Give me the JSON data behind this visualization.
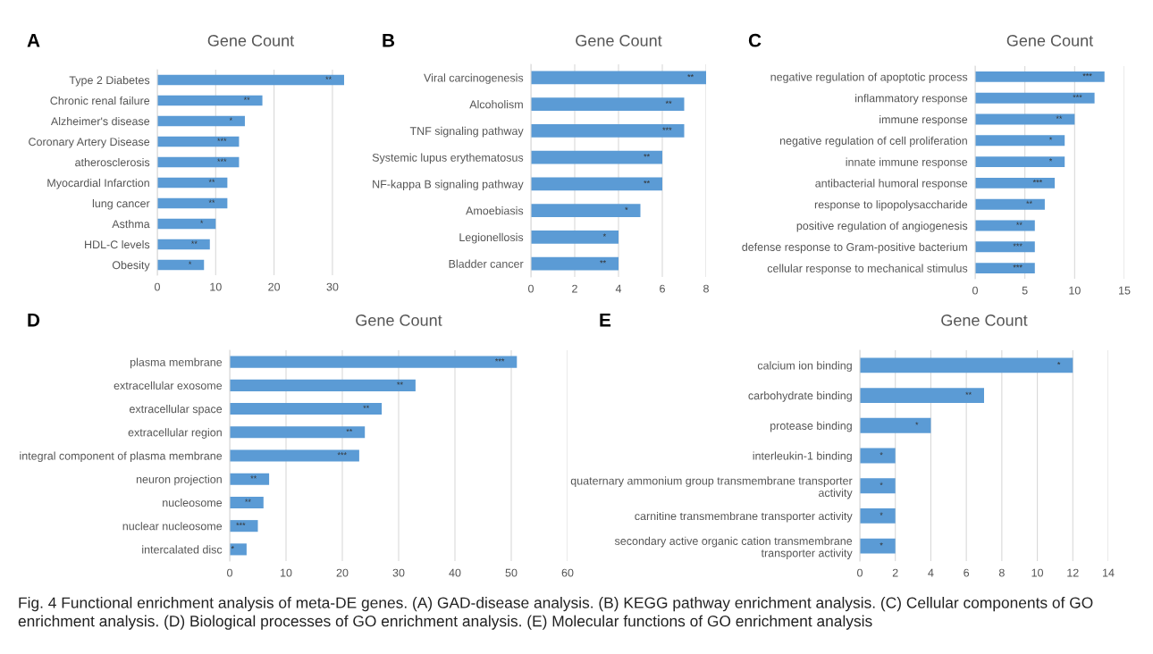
{
  "chart_data": [
    {
      "type": "bar",
      "orientation": "horizontal",
      "title": "Gene Count",
      "color": "#5b9bd5",
      "grid": "x",
      "xlim": [
        0,
        32
      ],
      "xticks": [
        0,
        10,
        20,
        30
      ],
      "categories": [
        "Type 2 Diabetes",
        "Chronic renal failure",
        "Alzheimer's disease",
        "Coronary Artery Disease",
        "atherosclerosis",
        "Myocardial Infarction",
        "lung cancer",
        "Asthma",
        "HDL-C levels",
        "Obesity"
      ],
      "values": [
        32,
        18,
        15,
        14,
        14,
        12,
        12,
        10,
        9,
        8
      ],
      "annotations": [
        "A",
        {
          "text": "**",
          "x": 32,
          "y": "Type 2 Diabetes"
        },
        {
          "text": "**",
          "x": 18,
          "y": "Chronic renal failure"
        },
        {
          "text": "*",
          "x": 15,
          "y": "Alzheimer's disease"
        },
        {
          "text": "***",
          "x": 14,
          "y": "Coronary Artery Disease"
        },
        {
          "text": "***",
          "x": 14,
          "y": "atherosclerosis"
        },
        {
          "text": "**",
          "x": 12,
          "y": "Myocardial Infarction"
        },
        {
          "text": "**",
          "x": 12,
          "y": "lung cancer"
        },
        {
          "text": "*",
          "x": 10,
          "y": "Asthma"
        },
        {
          "text": "**",
          "x": 9,
          "y": "HDL-C levels"
        },
        {
          "text": "*",
          "x": 8,
          "y": "Obesity"
        }
      ]
    },
    {
      "type": "bar",
      "orientation": "horizontal",
      "title": "Gene Count",
      "color": "#5b9bd5",
      "grid": "x",
      "xlim": [
        0,
        8
      ],
      "xticks": [
        0,
        2,
        4,
        6,
        8
      ],
      "categories": [
        "Viral carcinogenesis",
        "Alcoholism",
        "TNF signaling pathway",
        "Systemic lupus erythematosus",
        "NF-kappa B signaling pathway",
        "Amoebiasis",
        "Legionellosis",
        "Bladder cancer"
      ],
      "values": [
        8,
        7,
        7,
        6,
        6,
        5,
        4,
        4
      ],
      "annotations": [
        "B",
        {
          "text": "**",
          "x": 8,
          "y": "Viral carcinogenesis"
        },
        {
          "text": "**",
          "x": 7,
          "y": "Alcoholism"
        },
        {
          "text": "***",
          "x": 7,
          "y": "TNF signaling pathway"
        },
        {
          "text": "**",
          "x": 6,
          "y": "Systemic lupus erythematosus"
        },
        {
          "text": "**",
          "x": 6,
          "y": "NF-kappa B signaling pathway"
        },
        {
          "text": "*",
          "x": 5,
          "y": "Amoebiasis"
        },
        {
          "text": "*",
          "x": 4,
          "y": "Legionellosis"
        },
        {
          "text": "**",
          "x": 4,
          "y": "Bladder cancer"
        }
      ]
    },
    {
      "type": "bar",
      "orientation": "horizontal",
      "title": "Gene Count",
      "color": "#5b9bd5",
      "grid": "x",
      "xlim": [
        0,
        15
      ],
      "xticks": [
        0,
        5,
        10,
        15
      ],
      "categories": [
        "negative regulation of apoptotic process",
        "inflammatory response",
        "immune response",
        "negative regulation of cell proliferation",
        "innate immune response",
        "antibacterial humoral response",
        "response to lipopolysaccharide",
        "positive regulation of angiogenesis",
        "defense response to Gram-positive bacterium",
        "cellular response to mechanical stimulus"
      ],
      "values": [
        13,
        12,
        10,
        9,
        9,
        8,
        7,
        6,
        6,
        6
      ],
      "annotations": [
        "C",
        {
          "text": "***",
          "x": 13,
          "y": "negative regulation of apoptotic process"
        },
        {
          "text": "***",
          "x": 12,
          "y": "inflammatory response"
        },
        {
          "text": "**",
          "x": 10,
          "y": "immune response"
        },
        {
          "text": "*",
          "x": 9,
          "y": "negative regulation of cell proliferation"
        },
        {
          "text": "*",
          "x": 9,
          "y": "innate immune response"
        },
        {
          "text": "***",
          "x": 8,
          "y": "antibacterial humoral response"
        },
        {
          "text": "**",
          "x": 7,
          "y": "response to lipopolysaccharide"
        },
        {
          "text": "**",
          "x": 6,
          "y": "positive regulation of angiogenesis"
        },
        {
          "text": "***",
          "x": 6,
          "y": "defense response to Gram-positive bacterium"
        },
        {
          "text": "***",
          "x": 6,
          "y": "cellular response to mechanical stimulus"
        }
      ]
    },
    {
      "type": "bar",
      "orientation": "horizontal",
      "title": "Gene Count",
      "color": "#5b9bd5",
      "grid": "x",
      "xlim": [
        0,
        60
      ],
      "xticks": [
        0,
        10,
        20,
        30,
        40,
        50,
        60
      ],
      "categories": [
        "plasma membrane",
        "extracellular exosome",
        "extracellular space",
        "extracellular region",
        "integral component of plasma membrane",
        "neuron projection",
        "nucleosome",
        "nuclear nucleosome",
        "intercalated disc"
      ],
      "values": [
        51,
        33,
        27,
        24,
        23,
        7,
        6,
        5,
        3
      ],
      "annotations": [
        "D",
        {
          "text": "***",
          "x": 51,
          "y": "plasma membrane"
        },
        {
          "text": "**",
          "x": 33,
          "y": "extracellular exosome"
        },
        {
          "text": "**",
          "x": 27,
          "y": "extracellular space"
        },
        {
          "text": "**",
          "x": 24,
          "y": "extracellular region"
        },
        {
          "text": "***",
          "x": 23,
          "y": "integral component of plasma membrane"
        },
        {
          "text": "**",
          "x": 7,
          "y": "neuron projection"
        },
        {
          "text": "**",
          "x": 6,
          "y": "nucleosome"
        },
        {
          "text": "***",
          "x": 5,
          "y": "nuclear nucleosome"
        },
        {
          "text": "*",
          "x": 3,
          "y": "intercalated disc"
        }
      ]
    },
    {
      "type": "bar",
      "orientation": "horizontal",
      "title": "Gene Count",
      "color": "#5b9bd5",
      "grid": "x",
      "xlim": [
        0,
        14
      ],
      "xticks": [
        0,
        2,
        4,
        6,
        8,
        10,
        12,
        14
      ],
      "categories": [
        "calcium ion binding",
        "carbohydrate binding",
        "protease binding",
        "interleukin-1 binding",
        "quaternary ammonium group transmembrane transporter\nactivity",
        "carnitine transmembrane transporter activity",
        "secondary active organic cation transmembrane\ntransporter activity"
      ],
      "values": [
        12,
        7,
        4,
        2,
        2,
        2,
        2
      ],
      "annotations": [
        "E",
        "Fig. 4 Functional enrichment analysis of meta-DE genes. (A) GAD-disease analysis. (B) KEGG pathway enrichment analysis. (C) Cellular components of GO enrichment analysis. (D) Biological processes of GO enrichment analysis. (E) Molecular functions of GO enrichment analysis",
        {
          "text": "*",
          "x": 12,
          "y": "calcium ion binding"
        },
        {
          "text": "**",
          "x": 7,
          "y": "carbohydrate binding"
        },
        {
          "text": "*",
          "x": 4,
          "y": "protease binding"
        },
        {
          "text": "*",
          "x": 2,
          "y": "interleukin-1 binding"
        },
        {
          "text": "*",
          "x": 2,
          "y": "quaternary ammonium group transmembrane transporter\nactivity"
        },
        {
          "text": "*",
          "x": 2,
          "y": "carnitine transmembrane transporter activity"
        },
        {
          "text": "*",
          "x": 2,
          "y": "secondary active organic cation transmembrane\ntransporter activity"
        }
      ]
    }
  ]
}
